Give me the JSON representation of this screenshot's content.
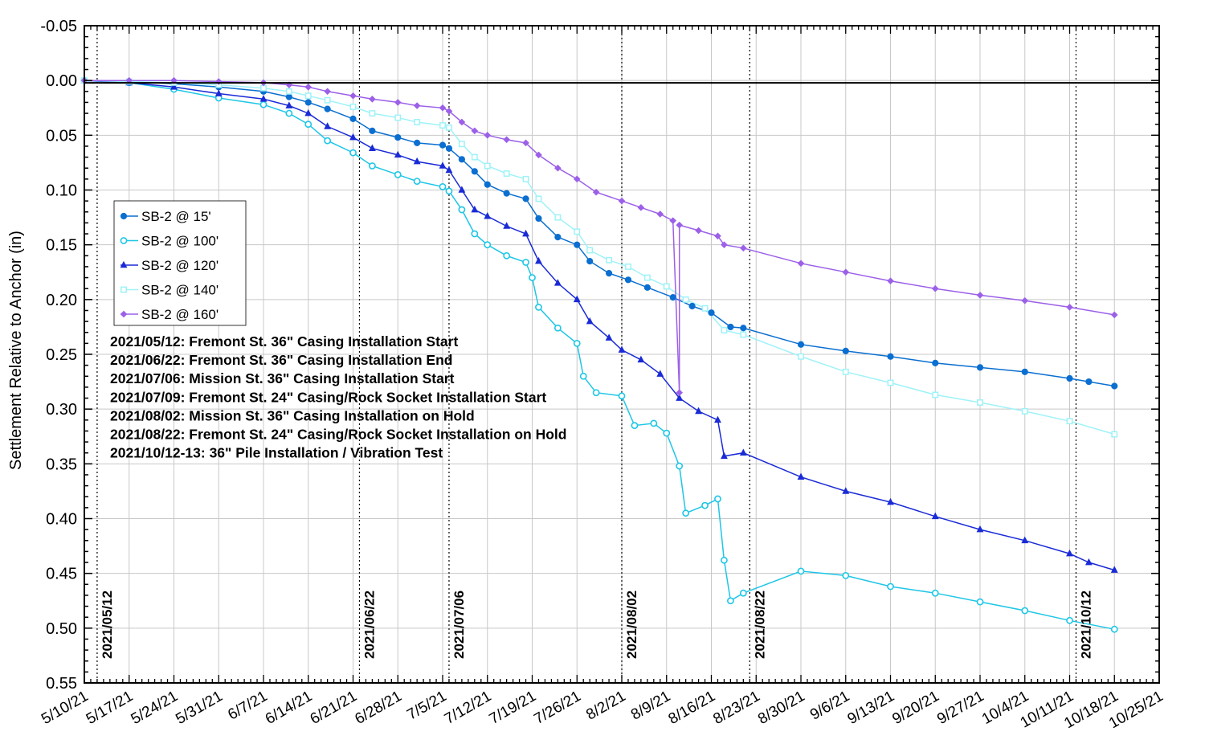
{
  "chart_data": {
    "type": "line",
    "title": "",
    "xlabel": "",
    "ylabel": "Settlement Relative to Anchor (in)",
    "y_axis_inverted": true,
    "ylim": [
      -0.05,
      0.55
    ],
    "xlim": [
      "2021-05-10",
      "2021-10-25"
    ],
    "grid": true,
    "legend_position": "left",
    "y_ticks": [
      "-0.05",
      "0.00",
      "0.05",
      "0.10",
      "0.15",
      "0.20",
      "0.25",
      "0.30",
      "0.35",
      "0.40",
      "0.45",
      "0.50",
      "0.55"
    ],
    "x_ticks": [
      {
        "date": "2021-05-10",
        "label": "5/10/21"
      },
      {
        "date": "2021-05-17",
        "label": "5/17/21"
      },
      {
        "date": "2021-05-24",
        "label": "5/24/21"
      },
      {
        "date": "2021-05-31",
        "label": "5/31/21"
      },
      {
        "date": "2021-06-07",
        "label": "6/7/21"
      },
      {
        "date": "2021-06-14",
        "label": "6/14/21"
      },
      {
        "date": "2021-06-21",
        "label": "6/21/21"
      },
      {
        "date": "2021-06-28",
        "label": "6/28/21"
      },
      {
        "date": "2021-07-05",
        "label": "7/5/21"
      },
      {
        "date": "2021-07-12",
        "label": "7/12/21"
      },
      {
        "date": "2021-07-19",
        "label": "7/19/21"
      },
      {
        "date": "2021-07-26",
        "label": "7/26/21"
      },
      {
        "date": "2021-08-02",
        "label": "8/2/21"
      },
      {
        "date": "2021-08-09",
        "label": "8/9/21"
      },
      {
        "date": "2021-08-16",
        "label": "8/16/21"
      },
      {
        "date": "2021-08-23",
        "label": "8/23/21"
      },
      {
        "date": "2021-08-30",
        "label": "8/30/21"
      },
      {
        "date": "2021-09-06",
        "label": "9/6/21"
      },
      {
        "date": "2021-09-13",
        "label": "9/13/21"
      },
      {
        "date": "2021-09-20",
        "label": "9/20/21"
      },
      {
        "date": "2021-09-27",
        "label": "9/27/21"
      },
      {
        "date": "2021-10-04",
        "label": "10/4/21"
      },
      {
        "date": "2021-10-11",
        "label": "10/11/21"
      },
      {
        "date": "2021-10-18",
        "label": "10/18/21"
      },
      {
        "date": "2021-10-25",
        "label": "10/25/21"
      }
    ],
    "event_lines": [
      {
        "date": "2021-05-12",
        "label": "2021/05/12"
      },
      {
        "date": "2021-06-22",
        "label": "2021/06/22"
      },
      {
        "date": "2021-07-06",
        "label": "2021/07/06"
      },
      {
        "date": "2021-08-02",
        "label": "2021/08/02"
      },
      {
        "date": "2021-08-22",
        "label": "2021/08/22"
      },
      {
        "date": "2021-10-12",
        "label": "2021/10/12"
      }
    ],
    "notes": [
      "2021/05/12: Fremont St. 36\" Casing Installation Start",
      "2021/06/22: Fremont St. 36\" Casing Installation End",
      "2021/07/06: Mission St.  36\" Casing Installation Start",
      "2021/07/09: Fremont St. 24\" Casing/Rock Socket Installation Start",
      "2021/08/02: Mission St.  36\" Casing Installation on Hold",
      "2021/08/22: Fremont St. 24\" Casing/Rock Socket Installation on Hold",
      "2021/10/12-13: 36\" Pile Installation / Vibration Test"
    ],
    "series": [
      {
        "name": "SB-2 @ 15'",
        "color": "#0a6fd0",
        "marker": "circle",
        "points": [
          [
            "2021-05-10",
            0.0
          ],
          [
            "2021-05-17",
            0.001
          ],
          [
            "2021-05-24",
            0.003
          ],
          [
            "2021-05-31",
            0.006
          ],
          [
            "2021-06-07",
            0.01
          ],
          [
            "2021-06-11",
            0.015
          ],
          [
            "2021-06-14",
            0.02
          ],
          [
            "2021-06-17",
            0.026
          ],
          [
            "2021-06-21",
            0.035
          ],
          [
            "2021-06-24",
            0.046
          ],
          [
            "2021-06-28",
            0.052
          ],
          [
            "2021-07-01",
            0.057
          ],
          [
            "2021-07-05",
            0.059
          ],
          [
            "2021-07-06",
            0.062
          ],
          [
            "2021-07-08",
            0.072
          ],
          [
            "2021-07-10",
            0.083
          ],
          [
            "2021-07-12",
            0.095
          ],
          [
            "2021-07-15",
            0.103
          ],
          [
            "2021-07-18",
            0.108
          ],
          [
            "2021-07-20",
            0.126
          ],
          [
            "2021-07-23",
            0.143
          ],
          [
            "2021-07-26",
            0.15
          ],
          [
            "2021-07-28",
            0.165
          ],
          [
            "2021-07-31",
            0.176
          ],
          [
            "2021-08-03",
            0.182
          ],
          [
            "2021-08-06",
            0.189
          ],
          [
            "2021-08-10",
            0.198
          ],
          [
            "2021-08-13",
            0.206
          ],
          [
            "2021-08-16",
            0.212
          ],
          [
            "2021-08-19",
            0.225
          ],
          [
            "2021-08-21",
            0.226
          ],
          [
            "2021-08-30",
            0.241
          ],
          [
            "2021-09-06",
            0.247
          ],
          [
            "2021-09-13",
            0.252
          ],
          [
            "2021-09-20",
            0.258
          ],
          [
            "2021-09-27",
            0.262
          ],
          [
            "2021-10-04",
            0.266
          ],
          [
            "2021-10-11",
            0.272
          ],
          [
            "2021-10-14",
            0.275
          ],
          [
            "2021-10-18",
            0.279
          ]
        ]
      },
      {
        "name": "SB-2 @ 100'",
        "color": "#1ec6e6",
        "marker": "open-circle",
        "points": [
          [
            "2021-05-10",
            0.0
          ],
          [
            "2021-05-17",
            0.002
          ],
          [
            "2021-05-24",
            0.008
          ],
          [
            "2021-05-31",
            0.016
          ],
          [
            "2021-06-07",
            0.022
          ],
          [
            "2021-06-11",
            0.03
          ],
          [
            "2021-06-14",
            0.04
          ],
          [
            "2021-06-17",
            0.055
          ],
          [
            "2021-06-21",
            0.066
          ],
          [
            "2021-06-24",
            0.078
          ],
          [
            "2021-06-28",
            0.086
          ],
          [
            "2021-07-01",
            0.092
          ],
          [
            "2021-07-05",
            0.097
          ],
          [
            "2021-07-06",
            0.101
          ],
          [
            "2021-07-08",
            0.118
          ],
          [
            "2021-07-10",
            0.14
          ],
          [
            "2021-07-12",
            0.15
          ],
          [
            "2021-07-15",
            0.16
          ],
          [
            "2021-07-18",
            0.166
          ],
          [
            "2021-07-19",
            0.18
          ],
          [
            "2021-07-20",
            0.207
          ],
          [
            "2021-07-23",
            0.226
          ],
          [
            "2021-07-26",
            0.24
          ],
          [
            "2021-07-27",
            0.27
          ],
          [
            "2021-07-29",
            0.285
          ],
          [
            "2021-08-02",
            0.288
          ],
          [
            "2021-08-04",
            0.315
          ],
          [
            "2021-08-07",
            0.313
          ],
          [
            "2021-08-09",
            0.322
          ],
          [
            "2021-08-11",
            0.352
          ],
          [
            "2021-08-12",
            0.395
          ],
          [
            "2021-08-15",
            0.388
          ],
          [
            "2021-08-17",
            0.382
          ],
          [
            "2021-08-18",
            0.438
          ],
          [
            "2021-08-19",
            0.475
          ],
          [
            "2021-08-21",
            0.468
          ],
          [
            "2021-08-30",
            0.448
          ],
          [
            "2021-09-06",
            0.452
          ],
          [
            "2021-09-13",
            0.462
          ],
          [
            "2021-09-20",
            0.468
          ],
          [
            "2021-09-27",
            0.476
          ],
          [
            "2021-10-04",
            0.484
          ],
          [
            "2021-10-11",
            0.493
          ],
          [
            "2021-10-18",
            0.501
          ]
        ]
      },
      {
        "name": "SB-2 @ 120'",
        "color": "#1a2bd6",
        "marker": "triangle",
        "points": [
          [
            "2021-05-10",
            0.0
          ],
          [
            "2021-05-17",
            0.002
          ],
          [
            "2021-05-24",
            0.006
          ],
          [
            "2021-05-31",
            0.012
          ],
          [
            "2021-06-07",
            0.017
          ],
          [
            "2021-06-11",
            0.023
          ],
          [
            "2021-06-14",
            0.03
          ],
          [
            "2021-06-17",
            0.042
          ],
          [
            "2021-06-21",
            0.052
          ],
          [
            "2021-06-24",
            0.062
          ],
          [
            "2021-06-28",
            0.068
          ],
          [
            "2021-07-01",
            0.074
          ],
          [
            "2021-07-05",
            0.078
          ],
          [
            "2021-07-06",
            0.082
          ],
          [
            "2021-07-08",
            0.1
          ],
          [
            "2021-07-10",
            0.118
          ],
          [
            "2021-07-12",
            0.124
          ],
          [
            "2021-07-15",
            0.133
          ],
          [
            "2021-07-18",
            0.14
          ],
          [
            "2021-07-20",
            0.165
          ],
          [
            "2021-07-23",
            0.185
          ],
          [
            "2021-07-26",
            0.2
          ],
          [
            "2021-07-28",
            0.22
          ],
          [
            "2021-07-31",
            0.235
          ],
          [
            "2021-08-02",
            0.246
          ],
          [
            "2021-08-05",
            0.255
          ],
          [
            "2021-08-08",
            0.268
          ],
          [
            "2021-08-11",
            0.29
          ],
          [
            "2021-08-14",
            0.302
          ],
          [
            "2021-08-17",
            0.31
          ],
          [
            "2021-08-18",
            0.343
          ],
          [
            "2021-08-21",
            0.34
          ],
          [
            "2021-08-30",
            0.362
          ],
          [
            "2021-09-06",
            0.375
          ],
          [
            "2021-09-13",
            0.385
          ],
          [
            "2021-09-20",
            0.398
          ],
          [
            "2021-09-27",
            0.41
          ],
          [
            "2021-10-04",
            0.42
          ],
          [
            "2021-10-11",
            0.432
          ],
          [
            "2021-10-14",
            0.44
          ],
          [
            "2021-10-18",
            0.447
          ]
        ]
      },
      {
        "name": "SB-2 @ 140'",
        "color": "#9ff2f8",
        "marker": "open-square",
        "points": [
          [
            "2021-05-10",
            0.0
          ],
          [
            "2021-05-17",
            0.001
          ],
          [
            "2021-05-24",
            0.002
          ],
          [
            "2021-05-31",
            0.004
          ],
          [
            "2021-06-07",
            0.007
          ],
          [
            "2021-06-11",
            0.01
          ],
          [
            "2021-06-14",
            0.014
          ],
          [
            "2021-06-17",
            0.018
          ],
          [
            "2021-06-21",
            0.024
          ],
          [
            "2021-06-24",
            0.03
          ],
          [
            "2021-06-28",
            0.034
          ],
          [
            "2021-07-01",
            0.038
          ],
          [
            "2021-07-05",
            0.041
          ],
          [
            "2021-07-06",
            0.043
          ],
          [
            "2021-07-08",
            0.058
          ],
          [
            "2021-07-10",
            0.07
          ],
          [
            "2021-07-12",
            0.078
          ],
          [
            "2021-07-15",
            0.085
          ],
          [
            "2021-07-18",
            0.09
          ],
          [
            "2021-07-20",
            0.108
          ],
          [
            "2021-07-23",
            0.125
          ],
          [
            "2021-07-26",
            0.138
          ],
          [
            "2021-07-28",
            0.155
          ],
          [
            "2021-07-31",
            0.164
          ],
          [
            "2021-08-03",
            0.17
          ],
          [
            "2021-08-06",
            0.18
          ],
          [
            "2021-08-09",
            0.188
          ],
          [
            "2021-08-12",
            0.2
          ],
          [
            "2021-08-15",
            0.208
          ],
          [
            "2021-08-18",
            0.228
          ],
          [
            "2021-08-21",
            0.232
          ],
          [
            "2021-08-30",
            0.252
          ],
          [
            "2021-09-06",
            0.266
          ],
          [
            "2021-09-13",
            0.276
          ],
          [
            "2021-09-20",
            0.287
          ],
          [
            "2021-09-27",
            0.294
          ],
          [
            "2021-10-04",
            0.302
          ],
          [
            "2021-10-11",
            0.311
          ],
          [
            "2021-10-18",
            0.323
          ]
        ]
      },
      {
        "name": "SB-2 @ 160'",
        "color": "#9c60e8",
        "marker": "diamond",
        "points": [
          [
            "2021-05-10",
            0.0
          ],
          [
            "2021-05-17",
            0.0
          ],
          [
            "2021-05-24",
            0.0
          ],
          [
            "2021-05-31",
            0.001
          ],
          [
            "2021-06-07",
            0.002
          ],
          [
            "2021-06-11",
            0.004
          ],
          [
            "2021-06-14",
            0.006
          ],
          [
            "2021-06-17",
            0.01
          ],
          [
            "2021-06-21",
            0.014
          ],
          [
            "2021-06-24",
            0.017
          ],
          [
            "2021-06-28",
            0.02
          ],
          [
            "2021-07-01",
            0.023
          ],
          [
            "2021-07-05",
            0.025
          ],
          [
            "2021-07-06",
            0.028
          ],
          [
            "2021-07-08",
            0.038
          ],
          [
            "2021-07-10",
            0.046
          ],
          [
            "2021-07-12",
            0.05
          ],
          [
            "2021-07-15",
            0.054
          ],
          [
            "2021-07-18",
            0.057
          ],
          [
            "2021-07-20",
            0.068
          ],
          [
            "2021-07-23",
            0.08
          ],
          [
            "2021-07-26",
            0.09
          ],
          [
            "2021-07-29",
            0.102
          ],
          [
            "2021-08-02",
            0.11
          ],
          [
            "2021-08-05",
            0.116
          ],
          [
            "2021-08-08",
            0.122
          ],
          [
            "2021-08-10",
            0.128
          ],
          [
            "2021-08-11",
            0.285
          ],
          [
            "2021-08-11",
            0.132
          ],
          [
            "2021-08-14",
            0.137
          ],
          [
            "2021-08-17",
            0.142
          ],
          [
            "2021-08-18",
            0.15
          ],
          [
            "2021-08-21",
            0.153
          ],
          [
            "2021-08-30",
            0.167
          ],
          [
            "2021-09-06",
            0.175
          ],
          [
            "2021-09-13",
            0.183
          ],
          [
            "2021-09-20",
            0.19
          ],
          [
            "2021-09-27",
            0.196
          ],
          [
            "2021-10-04",
            0.201
          ],
          [
            "2021-10-11",
            0.207
          ],
          [
            "2021-10-18",
            0.214
          ]
        ]
      }
    ]
  }
}
